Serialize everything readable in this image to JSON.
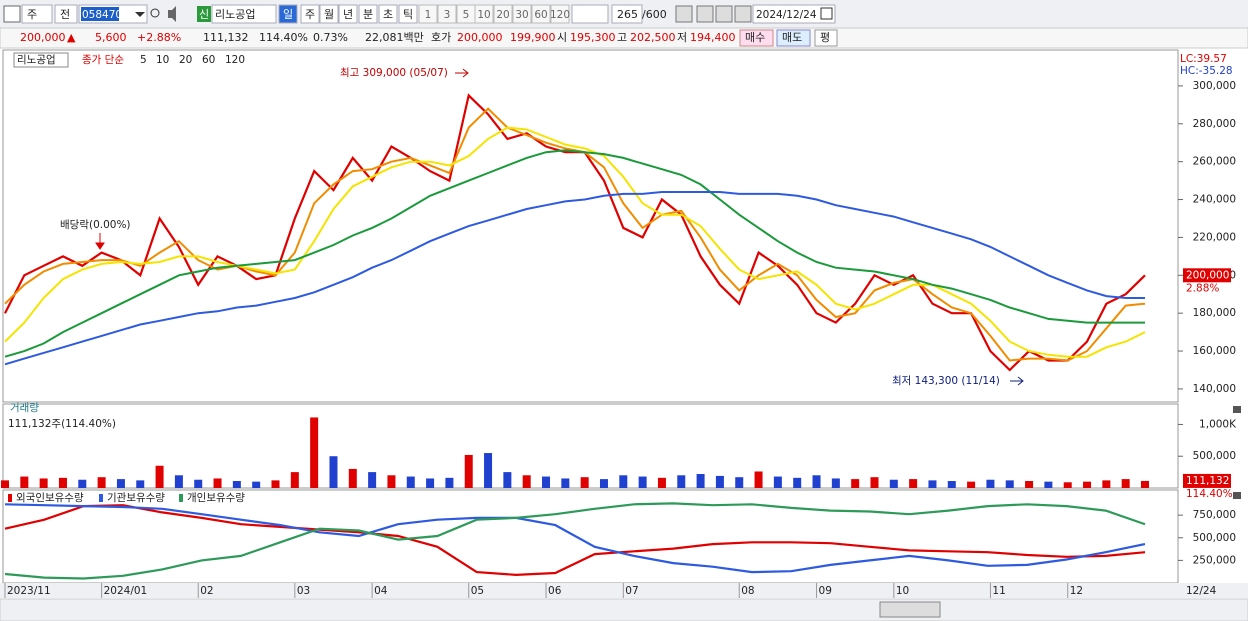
{
  "toolbar": {
    "period_type": "주",
    "prev": "전",
    "code": "058470",
    "badge": "신",
    "name": "리노공업",
    "units": [
      "일",
      "주",
      "월",
      "년",
      "분",
      "초",
      "틱"
    ],
    "intervals": [
      "1",
      "3",
      "5",
      "10",
      "20",
      "30",
      "60",
      "120"
    ],
    "count": "265",
    "max_count": "/600",
    "date": "2024/12/24"
  },
  "quote_bar": {
    "price": "200,000",
    "arrow": "▲",
    "change": "5,600",
    "change_pct": "+2.88%",
    "volume": "111,132",
    "volume_pct": "114.40%",
    "turnover_pct": "0.73%",
    "amount": "22,081백만",
    "ask_label": "호가",
    "ask": "200,000",
    "bid": "199,900",
    "open_label": "시",
    "open": "195,300",
    "high_label": "고",
    "high": "202,500",
    "low_label": "저",
    "low": "194,400",
    "buy": "매수",
    "sell": "매도",
    "avg": "평"
  },
  "chart_data": [
    {
      "type": "line",
      "name_box": "리노공업",
      "legend_label": "종가 단순",
      "categories": [
        "2023/11",
        null,
        null,
        null,
        null,
        "2024/01",
        null,
        null,
        null,
        null,
        "02",
        null,
        null,
        null,
        null,
        "03",
        null,
        null,
        null,
        "04",
        null,
        null,
        null,
        null,
        "05",
        null,
        null,
        null,
        "06",
        null,
        null,
        null,
        "07",
        null,
        null,
        null,
        null,
        null,
        "08",
        null,
        null,
        null,
        "09",
        null,
        null,
        null,
        "10",
        null,
        null,
        null,
        null,
        "11",
        null,
        null,
        null,
        "12",
        null,
        null,
        null,
        null
      ],
      "last_date": "12/24",
      "series": [
        {
          "name": "5",
          "color": "#e00000",
          "values": [
            180000,
            200000,
            205000,
            210000,
            205000,
            212000,
            208000,
            200000,
            230000,
            215000,
            195000,
            210000,
            205000,
            198000,
            200000,
            230000,
            255000,
            245000,
            262000,
            250000,
            268000,
            262000,
            255000,
            250000,
            295000,
            285000,
            272000,
            275000,
            268000,
            265000,
            265000,
            250000,
            225000,
            220000,
            240000,
            232000,
            210000,
            195000,
            185000,
            212000,
            205000,
            195000,
            180000,
            175000,
            185000,
            200000,
            195000,
            200000,
            185000,
            180000,
            180000,
            160000,
            150000,
            160000,
            155000,
            155000,
            165000,
            185000,
            190000,
            200000
          ]
        },
        {
          "name": "10",
          "color": "#f08c00",
          "values": [
            185000,
            195000,
            202000,
            206000,
            207000,
            208000,
            208000,
            205000,
            212000,
            218000,
            208000,
            203000,
            205000,
            202000,
            200000,
            212000,
            238000,
            248000,
            255000,
            256000,
            260000,
            262000,
            258000,
            254000,
            278000,
            288000,
            278000,
            274000,
            270000,
            267000,
            265000,
            257000,
            238000,
            225000,
            232000,
            234000,
            220000,
            203000,
            192000,
            200000,
            206000,
            200000,
            187000,
            178000,
            180000,
            192000,
            196000,
            198000,
            190000,
            183000,
            180000,
            168000,
            155000,
            156000,
            156000,
            155000,
            160000,
            172000,
            184000,
            185000
          ]
        },
        {
          "name": "20",
          "color": "#f5e400",
          "values": [
            165000,
            175000,
            188000,
            198000,
            203000,
            206000,
            207000,
            206000,
            207000,
            210000,
            210000,
            207000,
            205000,
            203000,
            201000,
            203000,
            218000,
            235000,
            247000,
            252000,
            257000,
            260000,
            260000,
            258000,
            263000,
            272000,
            278000,
            277000,
            273000,
            269000,
            267000,
            263000,
            252000,
            238000,
            232000,
            232000,
            226000,
            214000,
            203000,
            198000,
            200000,
            202000,
            195000,
            185000,
            182000,
            185000,
            190000,
            195000,
            195000,
            190000,
            185000,
            176000,
            165000,
            160000,
            158000,
            157000,
            157000,
            162000,
            165000,
            170000
          ]
        },
        {
          "name": "60",
          "color": "#1a9a3a",
          "values": [
            157000,
            160000,
            164000,
            170000,
            175000,
            180000,
            185000,
            190000,
            195000,
            200000,
            202000,
            204000,
            205000,
            206000,
            207000,
            208000,
            212000,
            216000,
            221000,
            225000,
            230000,
            236000,
            242000,
            246000,
            250000,
            254000,
            258000,
            262000,
            265000,
            266000,
            265000,
            264000,
            262000,
            259000,
            256000,
            253000,
            248000,
            240000,
            232000,
            225000,
            218000,
            212000,
            207000,
            204000,
            203000,
            202000,
            200000,
            198000,
            195000,
            193000,
            190000,
            187000,
            183000,
            180000,
            177000,
            176000,
            175000,
            175000,
            175000,
            175000
          ]
        },
        {
          "name": "120",
          "color": "#2e5ae0",
          "values": [
            153000,
            156000,
            159000,
            162000,
            165000,
            168000,
            171000,
            174000,
            176000,
            178000,
            180000,
            181000,
            183000,
            184000,
            186000,
            188000,
            191000,
            195000,
            199000,
            204000,
            208000,
            213000,
            218000,
            222000,
            226000,
            229000,
            232000,
            235000,
            237000,
            239000,
            240000,
            242000,
            243000,
            243000,
            244000,
            244000,
            244000,
            244000,
            243000,
            243000,
            243000,
            242000,
            240000,
            237000,
            235000,
            233000,
            231000,
            228000,
            225000,
            222000,
            219000,
            215000,
            210000,
            205000,
            200000,
            196000,
            192000,
            189000,
            188000,
            188000
          ]
        }
      ],
      "ylim": [
        133100,
        317900
      ],
      "yticks": [
        {
          "value": 140000,
          "label": "140,000"
        },
        {
          "value": 160000,
          "label": "160,000"
        },
        {
          "value": 180000,
          "label": "180,000"
        },
        {
          "value": 200000,
          "label": "200,000"
        },
        {
          "value": 220000,
          "label": "220,000"
        },
        {
          "value": 240000,
          "label": "240,000"
        },
        {
          "value": 260000,
          "label": "260,000"
        },
        {
          "value": 280000,
          "label": "280,000"
        },
        {
          "value": 300000,
          "label": "300,000"
        }
      ],
      "current": {
        "value": 200000,
        "label": "200,000"
      },
      "current_pct": "2.88%",
      "lc": "LC:39.57",
      "hc": "HC:-35.28",
      "annotations": [
        "최고 309,000 (05/07)",
        "최저 143,300 (11/14)",
        "배당락(0.00%)"
      ]
    },
    {
      "type": "bar",
      "title": "거래량",
      "summary": "111,132주(114.40%)",
      "values": [
        120000,
        180000,
        150000,
        160000,
        130000,
        170000,
        140000,
        120000,
        350000,
        200000,
        130000,
        150000,
        110000,
        100000,
        120000,
        250000,
        1110000,
        500000,
        300000,
        250000,
        200000,
        180000,
        150000,
        160000,
        520000,
        550000,
        250000,
        200000,
        180000,
        150000,
        170000,
        140000,
        200000,
        180000,
        160000,
        200000,
        220000,
        190000,
        170000,
        260000,
        180000,
        160000,
        200000,
        150000,
        140000,
        170000,
        130000,
        140000,
        120000,
        110000,
        100000,
        130000,
        120000,
        110000,
        100000,
        90000,
        100000,
        120000,
        140000,
        111132
      ],
      "up_color": "#e00000",
      "down_color": "#2040d0",
      "ylim": [
        0,
        1306000
      ],
      "yticks": [
        {
          "value": 500000,
          "label": "500,000"
        },
        {
          "value": 1000000,
          "label": "1,000K"
        }
      ],
      "current": {
        "value": 111132,
        "label": "111,132"
      },
      "current_pct": "114.40%"
    },
    {
      "type": "line",
      "series": [
        {
          "name": "외국인보유수량",
          "color": "#e00000",
          "values": [
            600000,
            700000,
            850000,
            860000,
            780000,
            720000,
            650000,
            620000,
            590000,
            560000,
            520000,
            400000,
            120000,
            90000,
            110000,
            320000,
            350000,
            380000,
            430000,
            450000,
            450000,
            440000,
            400000,
            360000,
            350000,
            340000,
            310000,
            290000,
            300000,
            340000
          ]
        },
        {
          "name": "기관보유수량",
          "color": "#2e5ae0",
          "values": [
            870000,
            860000,
            850000,
            840000,
            820000,
            760000,
            700000,
            640000,
            560000,
            520000,
            650000,
            700000,
            720000,
            720000,
            640000,
            400000,
            300000,
            220000,
            180000,
            120000,
            130000,
            200000,
            250000,
            300000,
            250000,
            190000,
            200000,
            260000,
            340000,
            430000
          ]
        },
        {
          "name": "개인보유수량",
          "color": "#2e9a5a",
          "values": [
            100000,
            60000,
            50000,
            80000,
            150000,
            250000,
            300000,
            450000,
            600000,
            580000,
            480000,
            520000,
            700000,
            720000,
            760000,
            820000,
            870000,
            880000,
            860000,
            870000,
            830000,
            800000,
            790000,
            760000,
            800000,
            850000,
            870000,
            850000,
            800000,
            650000
          ]
        }
      ],
      "ylim": [
        0,
        1017000
      ],
      "yticks": [
        {
          "value": 250000,
          "label": "250,000"
        },
        {
          "value": 500000,
          "label": "500,000"
        },
        {
          "value": 750000,
          "label": "750,000"
        }
      ]
    }
  ]
}
